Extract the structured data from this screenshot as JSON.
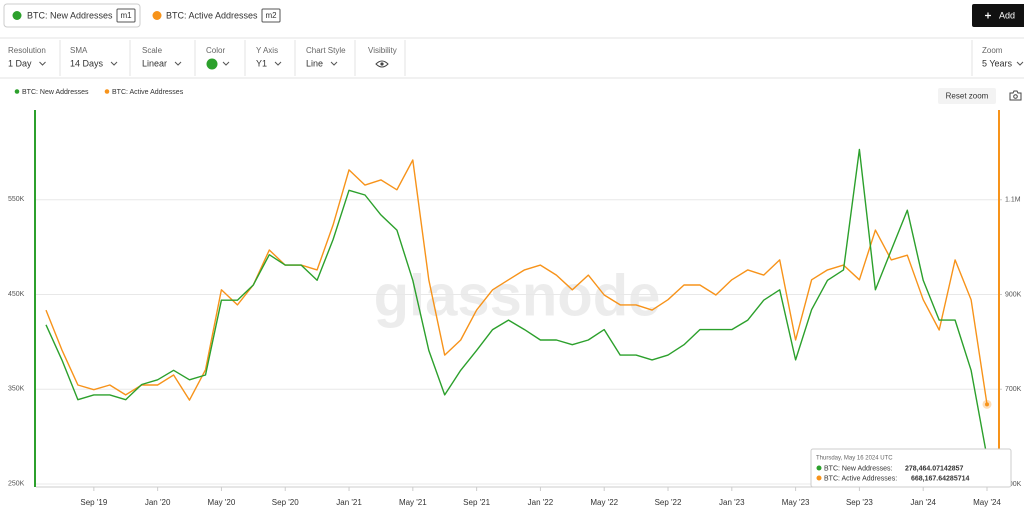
{
  "header": {
    "tabs": [
      {
        "name": "BTC: New Addresses",
        "tag": "m1"
      },
      {
        "name": "BTC: Active Addresses",
        "tag": "m2"
      }
    ],
    "add_button": "Add"
  },
  "controls": [
    {
      "label": "Resolution",
      "value": "1 Day"
    },
    {
      "label": "SMA",
      "value": "14 Days"
    },
    {
      "label": "Scale",
      "value": "Linear"
    },
    {
      "label": "Color"
    },
    {
      "label": "Y Axis",
      "value": "Y1"
    },
    {
      "label": "Chart Style",
      "value": "Line"
    },
    {
      "label": "Visibility"
    }
  ],
  "zoom": {
    "label": "Zoom",
    "value": "5 Years"
  },
  "reset_zoom": "Reset zoom",
  "watermark": "glassnode",
  "tooltip": {
    "date": "Thursday, May 16 2024 UTC",
    "items": [
      {
        "name": "BTC: New Addresses:",
        "value": "278,464.07142857"
      },
      {
        "name": "BTC: Active Addresses:",
        "value": "668,167.64285714"
      }
    ]
  },
  "chart_data": {
    "type": "line",
    "x": [
      "2019-06",
      "2019-07",
      "2019-08",
      "2019-09",
      "2019-10",
      "2019-11",
      "2019-12",
      "2020-01",
      "2020-02",
      "2020-03",
      "2020-04",
      "2020-05",
      "2020-06",
      "2020-07",
      "2020-08",
      "2020-09",
      "2020-10",
      "2020-11",
      "2020-12",
      "2021-01",
      "2021-02",
      "2021-03",
      "2021-04",
      "2021-05",
      "2021-06",
      "2021-07",
      "2021-08",
      "2021-09",
      "2021-10",
      "2021-11",
      "2021-12",
      "2022-01",
      "2022-02",
      "2022-03",
      "2022-04",
      "2022-05",
      "2022-06",
      "2022-07",
      "2022-08",
      "2022-09",
      "2022-10",
      "2022-11",
      "2022-12",
      "2023-01",
      "2023-02",
      "2023-03",
      "2023-04",
      "2023-05",
      "2023-06",
      "2023-07",
      "2023-08",
      "2023-09",
      "2023-10",
      "2023-11",
      "2023-12",
      "2024-01",
      "2024-02",
      "2024-03",
      "2024-04",
      "2024-05"
    ],
    "series": [
      {
        "name": "BTC: New Addresses",
        "color": "#2ca02c",
        "axis": "y",
        "values": [
          418000,
          381000,
          339000,
          344000,
          344000,
          339000,
          355000,
          360000,
          370000,
          360000,
          365000,
          444000,
          444000,
          460000,
          492000,
          481000,
          481000,
          465000,
          508000,
          560000,
          555000,
          534000,
          518000,
          465000,
          391000,
          344000,
          370000,
          391000,
          413000,
          423000,
          413000,
          402000,
          402000,
          397000,
          402000,
          413000,
          386000,
          386000,
          381000,
          386000,
          397000,
          413000,
          413000,
          413000,
          423000,
          444000,
          455000,
          381000,
          434000,
          465000,
          476000,
          603000,
          455000,
          497000,
          539000,
          465000,
          423000,
          423000,
          370000,
          278464.07142857
        ]
      },
      {
        "name": "BTC: Active Addresses",
        "color": "#f7931a",
        "axis": "y2",
        "values": [
          867000,
          783000,
          709000,
          699000,
          709000,
          688000,
          709000,
          709000,
          730000,
          677000,
          741000,
          910000,
          878000,
          920000,
          994000,
          962000,
          962000,
          952000,
          1047000,
          1163000,
          1131000,
          1142000,
          1121000,
          1184000,
          931000,
          772000,
          804000,
          867000,
          910000,
          931000,
          952000,
          962000,
          941000,
          910000,
          941000,
          899000,
          878000,
          878000,
          867000,
          889000,
          920000,
          920000,
          899000,
          931000,
          952000,
          941000,
          973000,
          804000,
          931000,
          952000,
          962000,
          931000,
          1036000,
          973000,
          983000,
          889000,
          825000,
          973000,
          889000,
          668167.64285714
        ]
      }
    ],
    "xlim": [
      "2019-06",
      "2024-05"
    ],
    "xticks": [
      {
        "value": "2019-09",
        "label": "Sep '19"
      },
      {
        "value": "2020-01",
        "label": "Jan '20"
      },
      {
        "value": "2020-05",
        "label": "May '20"
      },
      {
        "value": "2020-09",
        "label": "Sep '20"
      },
      {
        "value": "2021-01",
        "label": "Jan '21"
      },
      {
        "value": "2021-05",
        "label": "May '21"
      },
      {
        "value": "2021-09",
        "label": "Sep '21"
      },
      {
        "value": "2022-01",
        "label": "Jan '22"
      },
      {
        "value": "2022-05",
        "label": "May '22"
      },
      {
        "value": "2022-09",
        "label": "Sep '22"
      },
      {
        "value": "2023-01",
        "label": "Jan '23"
      },
      {
        "value": "2023-05",
        "label": "May '23"
      },
      {
        "value": "2023-09",
        "label": "Sep '23"
      },
      {
        "value": "2024-01",
        "label": "Jan '24"
      },
      {
        "value": "2024-05",
        "label": "May '24"
      }
    ],
    "ylim": [
      250000,
      650000
    ],
    "yticks": [
      {
        "value": 250000,
        "label": "250K"
      },
      {
        "value": 350000,
        "label": "350K"
      },
      {
        "value": 450000,
        "label": "450K"
      },
      {
        "value": 550000,
        "label": "550K"
      }
    ],
    "y2lim": [
      500000,
      1300000
    ],
    "y2ticks": [
      {
        "value": 500000,
        "label": "500K"
      },
      {
        "value": 700000,
        "label": "700K"
      },
      {
        "value": 900000,
        "label": "900K"
      },
      {
        "value": 1100000,
        "label": "1.1M"
      }
    ],
    "grid": true
  }
}
